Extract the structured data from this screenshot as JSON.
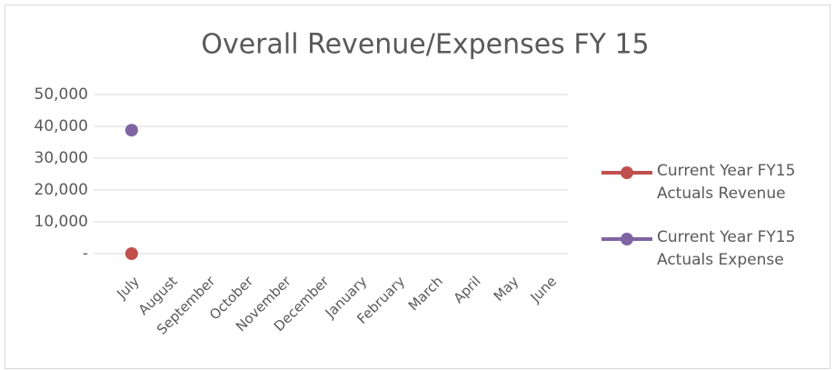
{
  "chart_data": {
    "type": "line",
    "title": "Overall Revenue/Expenses FY 15",
    "categories": [
      "July",
      "August",
      "September",
      "October",
      "November",
      "December",
      "January",
      "February",
      "March",
      "April",
      "May",
      "June"
    ],
    "series": [
      {
        "name": "Current Year FY15 Actuals Revenue",
        "color": "#c0504d",
        "values": [
          0,
          null,
          null,
          null,
          null,
          null,
          null,
          null,
          null,
          null,
          null,
          null
        ]
      },
      {
        "name": "Current Year FY15 Actuals Expense",
        "color": "#8064a2",
        "values": [
          38800,
          null,
          null,
          null,
          null,
          null,
          null,
          null,
          null,
          null,
          null,
          null
        ]
      }
    ],
    "ylim": [
      0,
      50000
    ],
    "yticks": [
      {
        "value": 0,
        "label": "-"
      },
      {
        "value": 10000,
        "label": "10,000"
      },
      {
        "value": 20000,
        "label": "20,000"
      },
      {
        "value": 30000,
        "label": "30,000"
      },
      {
        "value": 40000,
        "label": "40,000"
      },
      {
        "value": 50000,
        "label": "50,000"
      }
    ],
    "grid": true,
    "legend": "right"
  }
}
